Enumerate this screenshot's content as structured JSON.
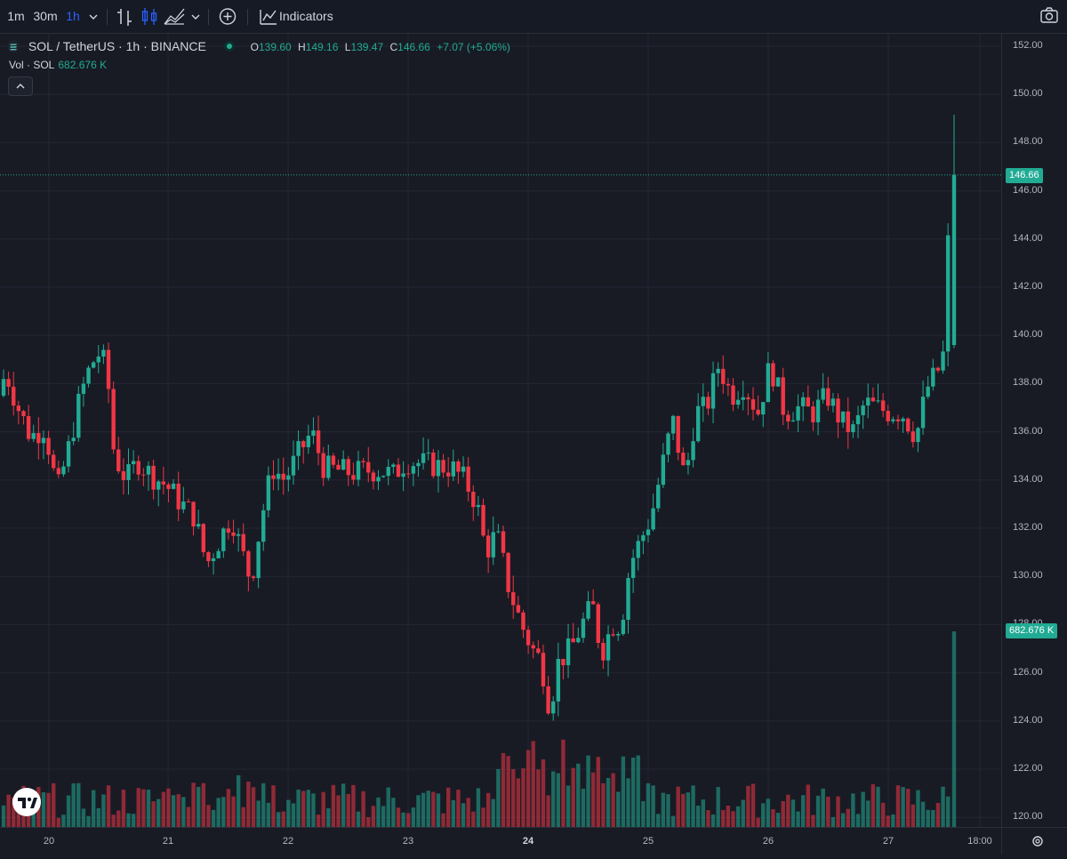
{
  "toolbar": {
    "intervals": [
      "1m",
      "30m",
      "1h"
    ],
    "active_interval": "1h",
    "indicators_label": "Indicators",
    "icons": [
      "chevron-down-icon",
      "bar-chart-icon",
      "candles-icon",
      "area-chart-icon",
      "add-circle-icon",
      "indicators-icon",
      "camera-icon"
    ]
  },
  "legend": {
    "symbol": "SOL / TetherUS · 1h · BINANCE",
    "open_label": "O",
    "open": "139.60",
    "high_label": "H",
    "high": "149.16",
    "low_label": "L",
    "low": "139.47",
    "close_label": "C",
    "close": "146.66",
    "change": "+7.07 (+5.06%)"
  },
  "volume_legend": {
    "label": "Vol · SOL",
    "value": "682.676 K"
  },
  "price_scale": {
    "labels": [
      "152.00",
      "150.00",
      "148.00",
      "146.00",
      "144.00",
      "142.00",
      "140.00",
      "138.00",
      "136.00",
      "134.00",
      "132.00",
      "130.00",
      "128.00",
      "126.00",
      "124.00",
      "122.00",
      "120.00"
    ],
    "last_price": "146.66",
    "last_volume": "682.676 K"
  },
  "time_scale": {
    "labels": [
      "20",
      "21",
      "22",
      "23",
      "24",
      "25",
      "26",
      "27",
      "18:00"
    ],
    "bold_label": "24"
  },
  "colors": {
    "up": "#22ab94",
    "down": "#f23645",
    "background": "#181b24",
    "grid": "#242733"
  },
  "chart_data": {
    "type": "candlestick",
    "symbol": "SOL/USDT",
    "interval": "1h",
    "ylim": [
      120,
      152
    ],
    "close_path": [
      [
        0,
        137.0
      ],
      [
        12,
        138.5
      ],
      [
        26,
        137.0
      ],
      [
        40,
        135.8
      ],
      [
        56,
        136.2
      ],
      [
        70,
        133.5
      ],
      [
        84,
        135.5
      ],
      [
        96,
        137.5
      ],
      [
        108,
        138.8
      ],
      [
        118,
        139.3
      ],
      [
        126,
        138.5
      ],
      [
        134,
        135.0
      ],
      [
        148,
        134.0
      ],
      [
        160,
        134.8
      ],
      [
        176,
        134.2
      ],
      [
        192,
        133.8
      ],
      [
        210,
        133.0
      ],
      [
        224,
        132.5
      ],
      [
        238,
        130.5
      ],
      [
        252,
        131.5
      ],
      [
        266,
        132.5
      ],
      [
        276,
        131.2
      ],
      [
        288,
        129.8
      ],
      [
        300,
        132.5
      ],
      [
        312,
        134.5
      ],
      [
        326,
        134.0
      ],
      [
        340,
        135.0
      ],
      [
        356,
        136.0
      ],
      [
        370,
        134.5
      ],
      [
        386,
        134.4
      ],
      [
        402,
        134.3
      ],
      [
        418,
        134.4
      ],
      [
        434,
        134.4
      ],
      [
        448,
        134.2
      ],
      [
        462,
        134.8
      ],
      [
        478,
        134.7
      ],
      [
        496,
        134.6
      ],
      [
        514,
        134.5
      ],
      [
        528,
        134.0
      ],
      [
        542,
        133.0
      ],
      [
        552,
        131.0
      ],
      [
        564,
        131.8
      ],
      [
        578,
        129.5
      ],
      [
        592,
        128.0
      ],
      [
        604,
        127.0
      ],
      [
        614,
        126.5
      ],
      [
        624,
        124.5
      ],
      [
        634,
        126.5
      ],
      [
        648,
        127.0
      ],
      [
        660,
        128.0
      ],
      [
        672,
        128.8
      ],
      [
        682,
        126.8
      ],
      [
        694,
        128.0
      ],
      [
        704,
        128.0
      ],
      [
        714,
        130.5
      ],
      [
        726,
        131.5
      ],
      [
        738,
        132.5
      ],
      [
        750,
        134.5
      ],
      [
        762,
        136.5
      ],
      [
        776,
        134.0
      ],
      [
        788,
        136.8
      ],
      [
        800,
        137.0
      ],
      [
        814,
        138.8
      ],
      [
        828,
        137.5
      ],
      [
        842,
        138.0
      ],
      [
        858,
        136.8
      ],
      [
        872,
        138.8
      ],
      [
        888,
        136.8
      ],
      [
        904,
        137.0
      ],
      [
        920,
        136.8
      ],
      [
        936,
        137.5
      ],
      [
        952,
        136.4
      ],
      [
        966,
        136.0
      ],
      [
        978,
        137.2
      ],
      [
        992,
        137.0
      ],
      [
        1006,
        136.8
      ],
      [
        1020,
        136.8
      ],
      [
        1036,
        135.8
      ],
      [
        1048,
        137.8
      ],
      [
        1060,
        138.5
      ],
      [
        1070,
        139.6
      ],
      [
        1073,
        146.66
      ]
    ],
    "spike_candle": {
      "open": 139.6,
      "high": 149.16,
      "low": 139.47,
      "close": 146.66
    },
    "last_volume": "682.676 K",
    "x_ticks": [
      "20",
      "21",
      "22",
      "23",
      "24",
      "25",
      "26",
      "27",
      "18:00"
    ]
  }
}
